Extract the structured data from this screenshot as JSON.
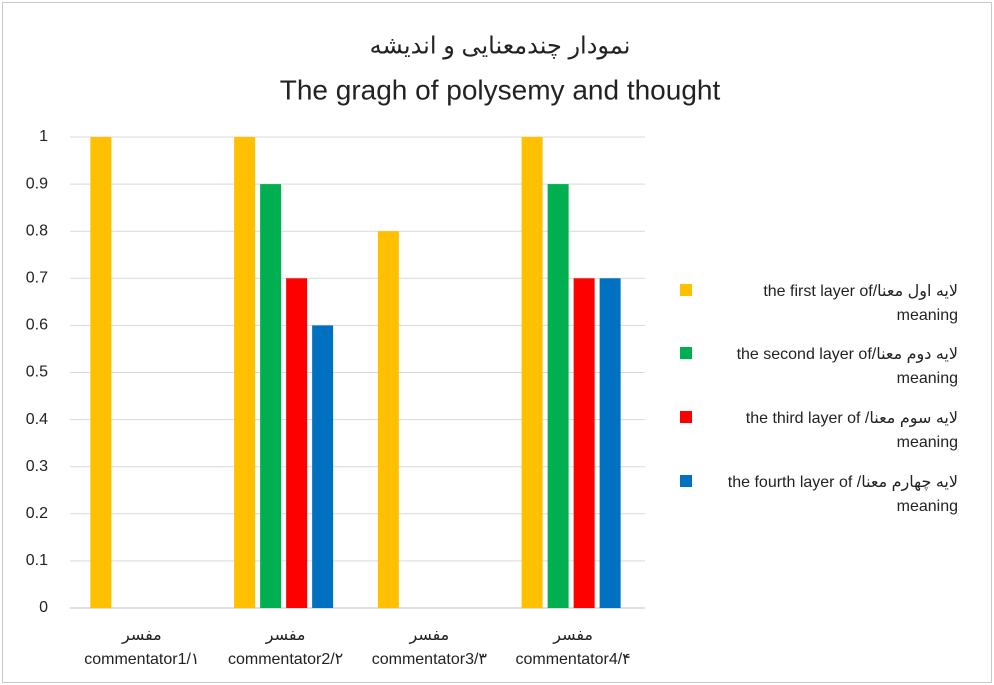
{
  "chart_data": {
    "type": "bar",
    "title": "نمودار چندمعنایی و اندیشه",
    "subtitle": "The gragh of polysemy and thought",
    "categories": [
      [
        "مفسر",
        "commentator1/۱"
      ],
      [
        "مفسر",
        "commentator2/۲"
      ],
      [
        "مفسر",
        "commentator3/۳"
      ],
      [
        "مفسر",
        "commentator4/۴"
      ]
    ],
    "series": [
      {
        "name": "the first layer of/لایه اول معنا meaning",
        "color": "#ffc000",
        "values": [
          1,
          1,
          0.8,
          1
        ]
      },
      {
        "name": "the  second layer of/لایه دوم معنا meaning",
        "color": "#00b050",
        "values": [
          0,
          0.9,
          0,
          0.9
        ]
      },
      {
        "name": "the third layer of  /لایه سوم معنا meaning",
        "color": "#ff0000",
        "values": [
          0,
          0.7,
          0,
          0.7
        ]
      },
      {
        "name": "the  fourth layer of  /لایه چهارم معنا meaning",
        "color": "#0070c0",
        "values": [
          0,
          0.6,
          0,
          0.7
        ]
      }
    ],
    "ylim": [
      0,
      1
    ],
    "yticks": [
      0,
      0.1,
      0.2,
      0.3,
      0.4,
      0.5,
      0.6,
      0.7,
      0.8,
      0.9,
      1
    ],
    "grid": true,
    "legend": "right"
  }
}
